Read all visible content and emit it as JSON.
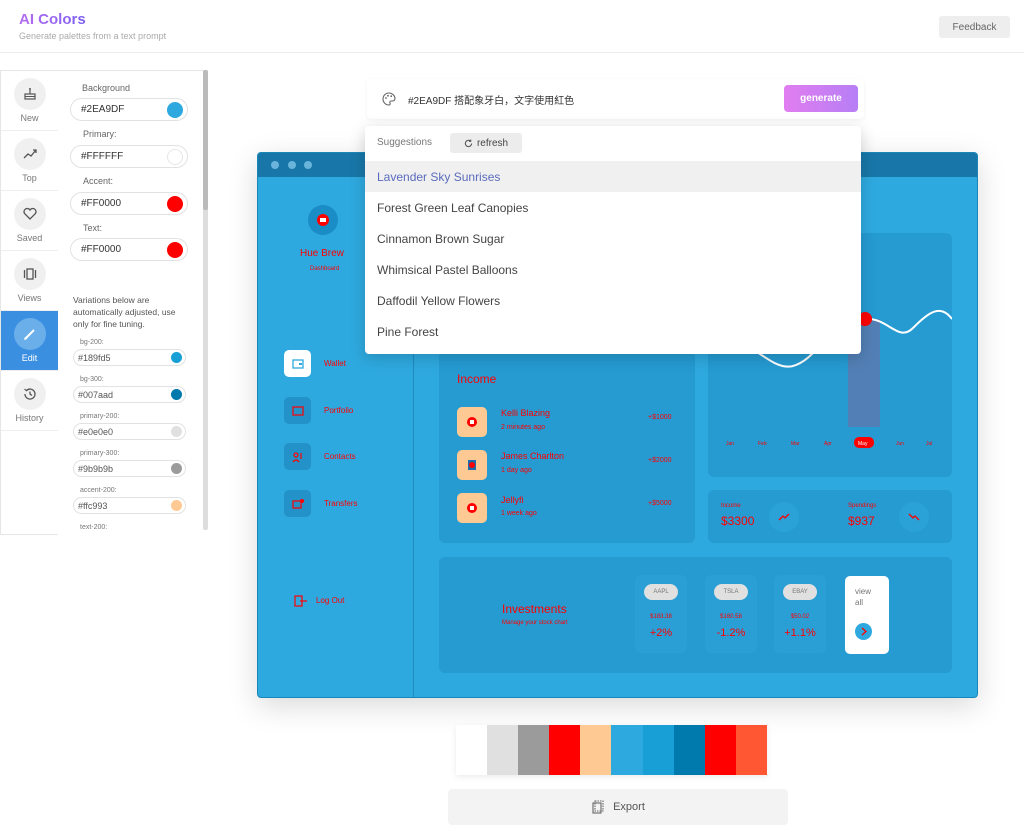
{
  "header": {
    "title": "AI Colors",
    "subtitle": "Generate palettes from a text prompt",
    "feedback_label": "Feedback"
  },
  "nav": {
    "items": [
      {
        "label": "New",
        "icon": "cake-icon"
      },
      {
        "label": "Top",
        "icon": "trending-up-icon"
      },
      {
        "label": "Saved",
        "icon": "heart-icon"
      },
      {
        "label": "Views",
        "icon": "view-carousel-icon"
      },
      {
        "label": "Edit",
        "icon": "pencil-icon",
        "active": true
      },
      {
        "label": "History",
        "icon": "history-icon"
      }
    ]
  },
  "editor": {
    "background": {
      "label": "Background",
      "value": "#2EA9DF",
      "color": "#2EA9DF"
    },
    "primary": {
      "label": "Primary:",
      "value": "#FFFFFF",
      "color": "#FFFFFF"
    },
    "accent": {
      "label": "Accent:",
      "value": "#FF0000",
      "color": "#FF0000"
    },
    "text": {
      "label": "Text:",
      "value": "#FF0000",
      "color": "#FF0000"
    },
    "note": "Variations below are automatically adjusted, use only for fine tuning.",
    "variations": [
      {
        "label": "bg-200:",
        "value": "#189fd5",
        "color": "#189fd5"
      },
      {
        "label": "bg-300:",
        "value": "#007aad",
        "color": "#007aad"
      },
      {
        "label": "primary-200:",
        "value": "#e0e0e0",
        "color": "#e0e0e0"
      },
      {
        "label": "primary-300:",
        "value": "#9b9b9b",
        "color": "#9b9b9b"
      },
      {
        "label": "accent-200:",
        "value": "#ffc993",
        "color": "#ffc993"
      },
      {
        "label": "text-200:",
        "value": "",
        "color": ""
      }
    ]
  },
  "prompt": {
    "value": "#2EA9DF 搭配象牙白，文字使用紅色",
    "generate_label": "generate"
  },
  "suggestions": {
    "label": "Suggestions",
    "refresh_label": "refresh",
    "items": [
      "Lavender Sky Sunrises",
      "Forest Green Leaf Canopies",
      "Cinnamon Brown Sugar",
      "Whimsical Pastel Balloons",
      "Daffodil Yellow Flowers",
      "Pine Forest"
    ]
  },
  "preview": {
    "brand": "Hue Brew",
    "brand_sub": "Dashboard",
    "nav": [
      "Wallet",
      "Portfolio",
      "Contacts",
      "Transfers"
    ],
    "logout": "Log Out",
    "income_title": "Income",
    "transactions": [
      {
        "name": "Kelli Blazing",
        "time": "2 minutes ago",
        "amount": "+$1000"
      },
      {
        "name": "James Charlton",
        "time": "1 day ago",
        "amount": "+$2000"
      },
      {
        "name": "Jellyfi",
        "time": "1 week ago",
        "amount": "+$5000"
      }
    ],
    "chart_months": [
      "Jan",
      "Feb",
      "Mar",
      "Apr",
      "May",
      "Jun",
      "Jul"
    ],
    "chart_active_month": "May",
    "income_stat_label": "Income",
    "income_stat_value": "$3300",
    "spending_label": "Spendings",
    "spending_value": "$937",
    "investments_title": "Investments",
    "investments_sub": "Manage your stock chart",
    "stocks": [
      {
        "ticker": "AAPL",
        "price": "$183.38",
        "change": "+2%"
      },
      {
        "ticker": "TSLA",
        "price": "$160.58",
        "change": "-1.2%"
      },
      {
        "ticker": "EBAY",
        "price": "$50.02",
        "change": "+1.1%"
      }
    ],
    "view_all": "view all"
  },
  "palette": {
    "swatches": [
      "#FFFFFF",
      "#E0E0E0",
      "#9B9B9B",
      "#FF0000",
      "#FFC993",
      "#2EA9DF",
      "#189FD5",
      "#007AAD",
      "#FF0000",
      "#FF5733"
    ]
  },
  "export_label": "Export"
}
